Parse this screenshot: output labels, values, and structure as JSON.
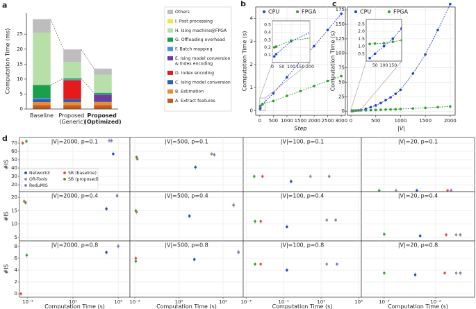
{
  "chart_data": [
    {
      "type": "bar",
      "stacked": true,
      "label": "a",
      "ylabel": "Computation Time (ms)",
      "categories": [
        "Baseline",
        "Proposed (Generic)",
        "Proposed (Optimized)"
      ],
      "bold_category": 2,
      "ylim": [
        0,
        32
      ],
      "yticks": [
        0,
        5,
        10,
        15,
        20,
        25
      ],
      "series": [
        {
          "name": "A. Extract features",
          "color": "#c45a20",
          "values": [
            1.3,
            1.3,
            1.3
          ]
        },
        {
          "name": "B. Estimation",
          "color": "#f08c28",
          "values": [
            1.0,
            1.0,
            1.0
          ]
        },
        {
          "name": "C. Ising model conversion",
          "color": "#2f5fb3",
          "values": [
            1.0,
            1.0,
            0.2
          ]
        },
        {
          "name": "D. Index encoding",
          "color": "#e41a1c",
          "values": [
            0,
            6.3,
            0
          ]
        },
        {
          "name": "E. Ising model conversion & Index encoding",
          "color": "#6a3d9a",
          "values": [
            0,
            0,
            2.3
          ]
        },
        {
          "name": "F. Batch mapping",
          "color": "#4a90d9",
          "values": [
            0.4,
            0.3,
            0.3
          ]
        },
        {
          "name": "G. Offloading overhead",
          "color": "#18a04a",
          "values": [
            4.3,
            0.3,
            0.3
          ]
        },
        {
          "name": "H. Ising machine@FPGA",
          "color": "#b7dfa8",
          "values": [
            17.5,
            5.5,
            6.0
          ]
        },
        {
          "name": "I. Post processing",
          "color": "#f3e53f",
          "values": [
            0,
            0,
            0
          ]
        },
        {
          "name": "Others",
          "color": "#bdbdbd",
          "values": [
            4.5,
            4.2,
            2.1
          ]
        }
      ],
      "legend": "right"
    },
    {
      "type": "line",
      "label": "b",
      "xlabel": "Step",
      "ylabel": "Computation Time (s)",
      "x": [
        10,
        20,
        100,
        500,
        1000,
        1500,
        2000,
        2500,
        3000
      ],
      "xlim": [
        -150,
        3150
      ],
      "xticks": [
        0,
        500,
        1000,
        1500,
        2000,
        2500,
        3000
      ],
      "ylim": [
        -0.2,
        4.5
      ],
      "yticks": [
        0,
        1,
        2,
        3,
        4
      ],
      "grid": true,
      "legend": "upper left",
      "series": [
        {
          "name": "CPU",
          "color": "#1f3fd8",
          "values": [
            0.08,
            0.11,
            0.28,
            0.75,
            1.45,
            2.15,
            2.8,
            3.5,
            4.2
          ]
        },
        {
          "name": "FPGA",
          "color": "#2e9e2e",
          "values": [
            0.2,
            0.21,
            0.29,
            0.42,
            0.64,
            0.85,
            1.07,
            1.29,
            1.5
          ]
        }
      ],
      "inset": {
        "xlim": [
          0,
          200
        ],
        "ylim": [
          0,
          0.55
        ],
        "xticks": [
          0,
          50,
          100,
          150,
          200
        ],
        "yticks": [
          0.1,
          0.2,
          0.3,
          0.4,
          0.5
        ]
      }
    },
    {
      "type": "line",
      "label": "c",
      "xlabel": "|V|",
      "ylabel": "Computation Time (s)",
      "x": [
        20,
        50,
        100,
        150,
        200,
        300,
        400,
        500,
        600,
        700,
        800,
        900,
        1000,
        1250,
        1500,
        1750,
        2000
      ],
      "xlim": [
        -70,
        2100
      ],
      "xticks": [
        0,
        500,
        1000,
        1500,
        2000
      ],
      "ylim": [
        -7,
        180
      ],
      "yticks": [
        0,
        25,
        50,
        75,
        100,
        125,
        150,
        175
      ],
      "grid": true,
      "legend": "upper left",
      "series": [
        {
          "name": "CPU",
          "color": "#1f3fd8",
          "values": [
            0.2,
            0.5,
            1,
            1.5,
            2.2,
            4,
            7,
            10,
            14,
            19,
            24,
            30,
            37,
            65,
            98,
            140,
            185
          ]
        },
        {
          "name": "FPGA",
          "color": "#2e9e2e",
          "values": [
            1.15,
            1.18,
            1.2,
            1.3,
            1.4,
            1.6,
            1.9,
            2.2,
            2.5,
            2.8,
            3.1,
            3.4,
            3.8,
            4.8,
            5.8,
            7,
            8.2
          ]
        }
      ],
      "inset": {
        "xlim": [
          0,
          200
        ],
        "ylim": [
          0,
          2.8
        ],
        "xticks": [
          50,
          100,
          150
        ],
        "yticks": [
          0.5,
          {
            "value": 1,
            "label": "1.0"
          },
          1.5,
          {
            "value": 2,
            "label": "2.0"
          },
          2.5
        ]
      }
    },
    {
      "type": "scatter",
      "label": "d",
      "log_x": true,
      "grid": true,
      "legend": "lower left",
      "series": [
        {
          "name": "NetworkX",
          "color": "#1f3fd8"
        },
        {
          "name": "OR-Tools",
          "color": "#8c8c8c"
        },
        {
          "name": "ReduMIS",
          "color": "#9467bd"
        },
        {
          "name": "SB (baseline)",
          "color": "#e8413c"
        },
        {
          "name": "SB (proposed)",
          "color": "#2ca02c"
        }
      ],
      "columns": [
        {
          "xlabel": "Computation Time (s)",
          "xlim": [
            0.043,
            3300
          ],
          "xticks": [
            {
              "value": 0.1,
              "label": "10⁻¹"
            },
            {
              "value": 10,
              "label": "10¹"
            },
            {
              "value": 1000,
              "label": "10³"
            }
          ]
        },
        {
          "xlabel": "Computation Time (s)",
          "xlim": [
            0.006,
            820
          ],
          "xticks": [
            {
              "value": 0.01,
              "label": "10⁻²"
            },
            {
              "value": 1,
              "label": "10⁰"
            },
            {
              "value": 100,
              "label": "10²"
            }
          ]
        },
        {
          "xlabel": "Computation Time (s)",
          "xlim": [
            0.0007,
            1400
          ],
          "xticks": [
            {
              "value": 0.001,
              "label": "10⁻³"
            },
            {
              "value": 0.1,
              "label": "10⁻¹"
            },
            {
              "value": 10,
              "label": "10¹"
            },
            {
              "value": 1000,
              "label": "10³"
            }
          ]
        },
        {
          "xlabel": "Computation Time (s)",
          "xlim": [
            0.00036,
            0.057
          ],
          "xticks": [
            {
              "value": 0.001,
              "label": "10⁻³"
            },
            {
              "value": 0.01,
              "label": "10⁻²"
            }
          ]
        }
      ],
      "rows": [
        {
          "ylabel": "#IS",
          "ylim": [
            11.7,
            76.7
          ],
          "yticks": [
            20,
            30,
            40,
            50,
            60,
            70
          ],
          "panels": [
            {
              "title": "|V|=2000, p=0.1",
              "x": [
                600,
                400,
                500,
                0.06,
                0.087
              ],
              "y": [
                57,
                73,
                73,
                70,
                72
              ]
            },
            {
              "title": "|V|=500, p=0.1",
              "x": [
                5.6,
                30,
                40,
                0.013,
                0.012
              ],
              "y": [
                41,
                57,
                56,
                51,
                53
              ]
            },
            {
              "title": "|V|=100, p=0.1",
              "x": [
                0.25,
                2.7,
                27,
                0.0075,
                0.0027
              ],
              "y": [
                24,
                30,
                30,
                30,
                30
              ]
            },
            {
              "title": "|V|=20, p=0.1",
              "x": [
                0.0043,
                0.0017,
                0.02,
                0.017,
                0.0008
              ],
              "y": [
                13,
                13,
                13,
                13,
                13
              ]
            }
          ]
        },
        {
          "ylabel": "#IS",
          "ylim": [
            3.7,
            22.1
          ],
          "yticks": [
            5,
            10,
            15,
            20
          ],
          "panels": [
            {
              "title": "|V|=2000, p=0.4",
              "x": [
                300,
                900,
                900,
                0.07,
                0.08
              ],
              "y": [
                15.7,
                20.7,
                20.5,
                18.5,
                18
              ]
            },
            {
              "title": "|V|=500, p=0.4",
              "x": [
                3,
                300,
                300,
                0.012,
                0.011
              ],
              "y": [
                13,
                17.2,
                17,
                14.5,
                15
              ]
            },
            {
              "title": "|V|=100, p=0.4",
              "x": [
                0.15,
                20,
                60,
                0.006,
                0.003
              ],
              "y": [
                9,
                11.5,
                11.5,
                11,
                11
              ]
            },
            {
              "title": "|V|=20, p=0.4",
              "x": [
                0.005,
                0.025,
                0.03,
                0.016,
                0.001
              ],
              "y": [
                5.6,
                6,
                6,
                6,
                6.2
              ]
            }
          ]
        },
        {
          "ylabel": "#IS",
          "ylim": [
            -0.58,
            8.93
          ],
          "yticks": [
            0,
            2,
            4,
            6,
            8
          ],
          "panels": [
            {
              "title": "|V|=2000, p=0.8",
              "x": [
                300,
                1000,
                1000,
                0.05,
                0.09
              ],
              "y": [
                7,
                8.1,
                8,
                0,
                6.5
              ]
            },
            {
              "title": "|V|=500, p=0.8",
              "x": [
                5,
                500,
                500,
                0.011,
                0.011
              ],
              "y": [
                5.8,
                7.1,
                7,
                6,
                5.5
              ]
            },
            {
              "title": "|V|=100, p=0.8",
              "x": [
                0.15,
                20,
                70,
                0.006,
                0.003
              ],
              "y": [
                4,
                5,
                5,
                5,
                5
              ]
            },
            {
              "title": "|V|=20, p=0.8",
              "x": [
                0.004,
                0.025,
                0.03,
                0.015,
                0.001
              ],
              "y": [
                3.2,
                3.5,
                3.5,
                3.5,
                3.5
              ]
            }
          ]
        }
      ]
    }
  ]
}
